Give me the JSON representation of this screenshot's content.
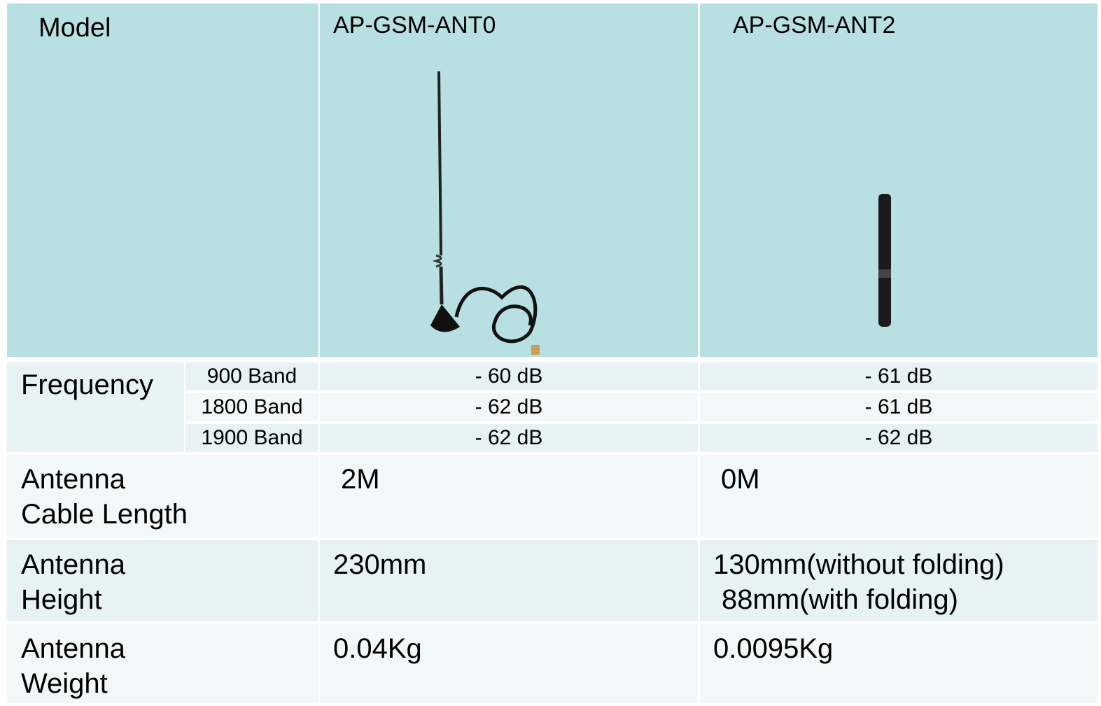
{
  "table": {
    "header": [
      "Model",
      "AP-GSM-ANT0",
      "AP-GSM-ANT2"
    ],
    "frequency": {
      "label": "Frequency",
      "rows": [
        [
          "900 Band",
          "- 60 dB",
          "- 61 dB"
        ],
        [
          "1800 Band",
          "- 62 dB",
          "- 61 dB"
        ],
        [
          "1900 Band",
          "- 62 dB",
          "- 62 dB"
        ]
      ]
    },
    "rows": [
      {
        "label": [
          "Antenna",
          "Cable Length"
        ],
        "values": [
          [
            "2M"
          ],
          [
            "0M"
          ]
        ]
      },
      {
        "label": [
          "Antenna",
          "Height"
        ],
        "values": [
          [
            "230mm"
          ],
          [
            "130mm(without folding)",
            "88mm(with folding)"
          ]
        ]
      },
      {
        "label": [
          "Antenna",
          "Weight"
        ],
        "values": [
          [
            "0.04Kg"
          ],
          [
            "0.0095Kg"
          ]
        ]
      }
    ]
  }
}
